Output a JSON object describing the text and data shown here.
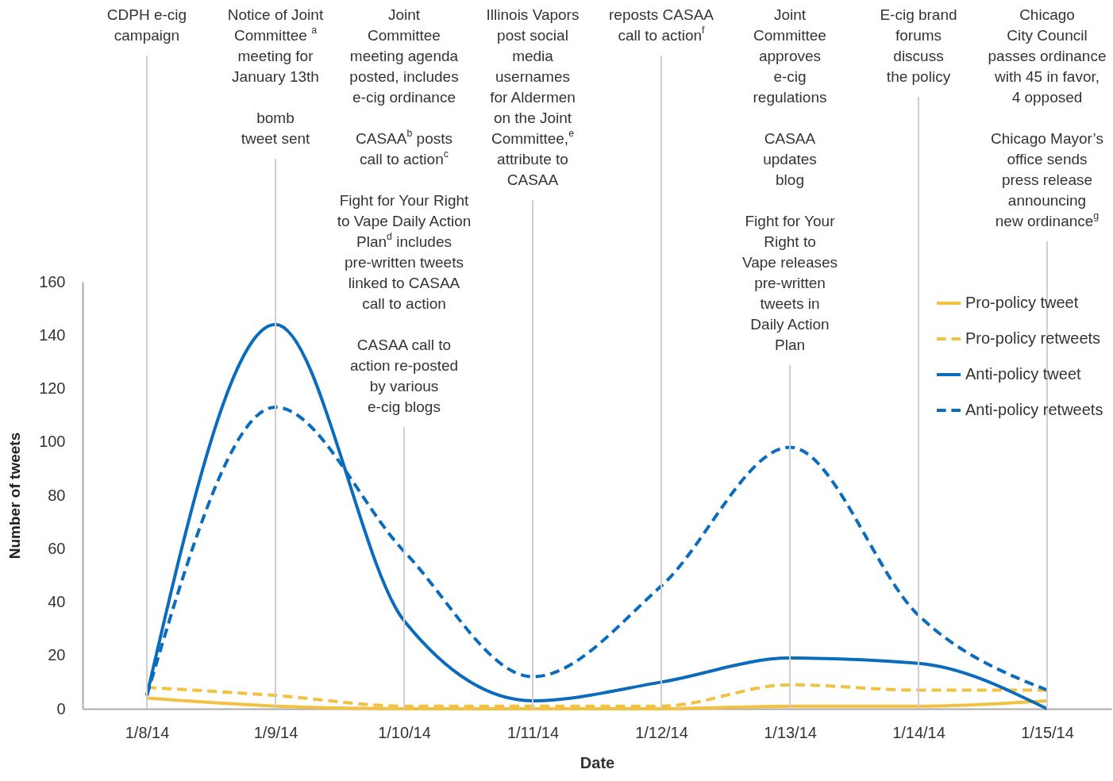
{
  "chart_data": {
    "type": "line",
    "xlabel": "Date",
    "ylabel": "Number of tweets",
    "categories": [
      "1/8/14",
      "1/9/14",
      "1/10/14",
      "1/11/14",
      "1/12/14",
      "1/13/14",
      "1/14/14",
      "1/15/14"
    ],
    "series": [
      {
        "name": "Pro-policy tweet",
        "color": "#f2c141",
        "line_style": "solid",
        "values": [
          4,
          1,
          0,
          0,
          0,
          1,
          1,
          3
        ]
      },
      {
        "name": "Pro-policy retweets",
        "color": "#f2c141",
        "line_style": "dashed",
        "values": [
          8,
          5,
          1,
          1,
          1,
          9,
          7,
          7
        ]
      },
      {
        "name": "Anti-policy tweet",
        "color": "#0b6cbd",
        "line_style": "solid",
        "values": [
          5,
          144,
          33,
          3,
          10,
          19,
          17,
          0
        ]
      },
      {
        "name": "Anti-policy retweets",
        "color": "#0b6cbd",
        "line_style": "dashed",
        "values": [
          5,
          113,
          59,
          12,
          46,
          98,
          35,
          7
        ]
      }
    ],
    "ylim": [
      0,
      160
    ],
    "yticks": [
      0,
      20,
      40,
      60,
      80,
      100,
      120,
      140,
      160
    ],
    "legend": "top right",
    "ref_lines": [
      {
        "axis": "x",
        "value": "1/8/14",
        "color": "#cfcfcf",
        "label": "CDPH e-cig\ncampaign"
      },
      {
        "axis": "x",
        "value": "1/9/14",
        "color": "#cfcfcf",
        "label": "Notice of Joint\nCommittee $^{a}$\nmeeting for\nJanuary 13th\n\nbomb\ntweet sent"
      },
      {
        "axis": "x",
        "value": "1/10/14",
        "color": "#cfcfcf",
        "label": "Joint\nCommittee\nmeeting agenda\nposted, includes\ne-cig ordinance\n\nCASAA$^{b}$ posts\ncall to action$^{c}$\n\nFight for Your Right\nto Vape Daily Action\nPlan$^{d}$ includes\npre-written tweets\nlinked to CASAA\ncall to action\n\nCASAA call to\naction re-posted\nby various\ne-cig blogs"
      },
      {
        "axis": "x",
        "value": "1/11/14",
        "color": "#cfcfcf",
        "label": "Illinois Vapors\npost social\nmedia\nusernames\nfor Aldermen\non the Joint\nCommittee,$^{e}$\nattribute to\nCASAA"
      },
      {
        "axis": "x",
        "value": "1/12/14",
        "color": "#cfcfcf",
        "label": "reposts CASAA\ncall to action$^{f}$"
      },
      {
        "axis": "x",
        "value": "1/13/14",
        "color": "#cfcfcf",
        "label": "Joint\nCommittee\napproves\ne-cig\nregulations\n\nCASAA\nupdates\nblog\n\nFight for Your\nRight to\nVape releases\npre-written\ntweets in\nDaily Action\nPlan"
      },
      {
        "axis": "x",
        "value": "1/14/14",
        "color": "#cfcfcf",
        "label": "E-cig brand\nforums\ndiscuss\nthe policy"
      },
      {
        "axis": "x",
        "value": "1/15/14",
        "color": "#cfcfcf",
        "label": "Chicago\nCity Council\npasses ordinance\nwith 45 in favor,\n4 opposed\n\nChicago Mayor’s\noffice sends\npress release\nannouncing\nnew ordinance$^{g}$"
      }
    ]
  }
}
